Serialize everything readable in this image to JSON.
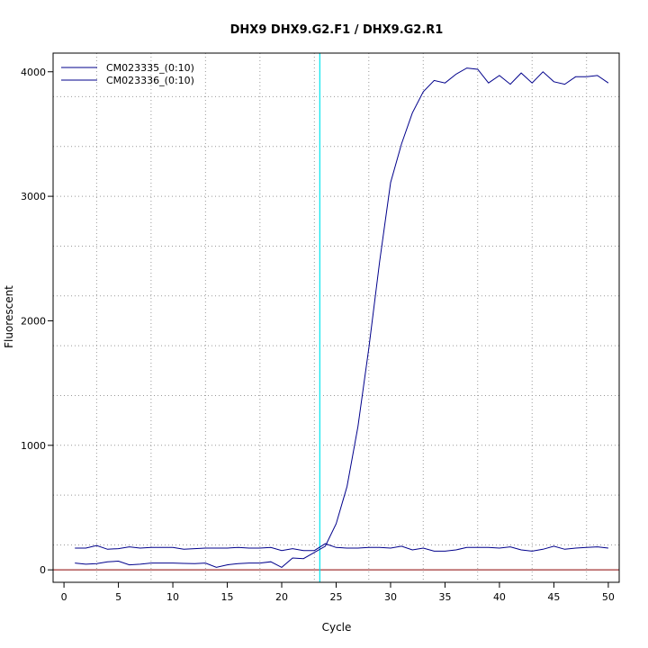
{
  "chart_data": {
    "type": "line",
    "title": "DHX9  DHX9.G2.F1 / DHX9.G2.R1",
    "xlabel": "Cycle",
    "ylabel": "Fluorescent",
    "xlim": [
      -1,
      51
    ],
    "ylim": [
      -100,
      4150
    ],
    "xticks": [
      0,
      5,
      10,
      15,
      20,
      25,
      30,
      35,
      40,
      45,
      50
    ],
    "yticks": [
      0,
      1000,
      2000,
      3000,
      4000
    ],
    "x_gridlines": [
      3,
      8,
      13,
      18,
      23,
      28,
      33,
      38,
      43,
      48
    ],
    "y_gridlines": [
      200,
      600,
      1000,
      1400,
      1800,
      2200,
      2600,
      3000,
      3400,
      3800
    ],
    "grid": true,
    "legend_position": "top-left",
    "threshold_x": 23.5,
    "threshold_color": "#00e5ee",
    "baseline_y": 0,
    "baseline_color": "#8b0000",
    "series_color": "#00008b",
    "legend": [
      "CM023335_(0:10)",
      "CM023336_(0:10)"
    ],
    "x": [
      1,
      2,
      3,
      4,
      5,
      6,
      7,
      8,
      9,
      10,
      11,
      12,
      13,
      14,
      15,
      16,
      17,
      18,
      19,
      20,
      21,
      22,
      23,
      24,
      25,
      26,
      27,
      28,
      29,
      30,
      31,
      32,
      33,
      34,
      35,
      36,
      37,
      38,
      39,
      40,
      41,
      42,
      43,
      44,
      45,
      46,
      47,
      48,
      49,
      50
    ],
    "series": [
      {
        "values": [
          55,
          45,
          50,
          65,
          70,
          40,
          45,
          55,
          55,
          55,
          52,
          50,
          55,
          20,
          40,
          50,
          55,
          55,
          65,
          20,
          95,
          90,
          140,
          190,
          370,
          670,
          1150,
          1780,
          2480,
          3110,
          3420,
          3670,
          3840,
          3930,
          3910,
          3980,
          4030,
          4020,
          3910,
          3970,
          3900,
          3990,
          3910,
          4000,
          3920,
          3900,
          3960,
          3960,
          3970,
          3910
        ]
      },
      {
        "values": [
          175,
          175,
          195,
          165,
          170,
          185,
          175,
          180,
          180,
          180,
          165,
          170,
          175,
          175,
          175,
          180,
          175,
          175,
          180,
          155,
          170,
          155,
          155,
          210,
          180,
          175,
          175,
          180,
          180,
          175,
          190,
          160,
          175,
          150,
          150,
          160,
          180,
          180,
          180,
          175,
          185,
          160,
          150,
          165,
          190,
          165,
          175,
          180,
          185,
          175
        ]
      }
    ]
  }
}
